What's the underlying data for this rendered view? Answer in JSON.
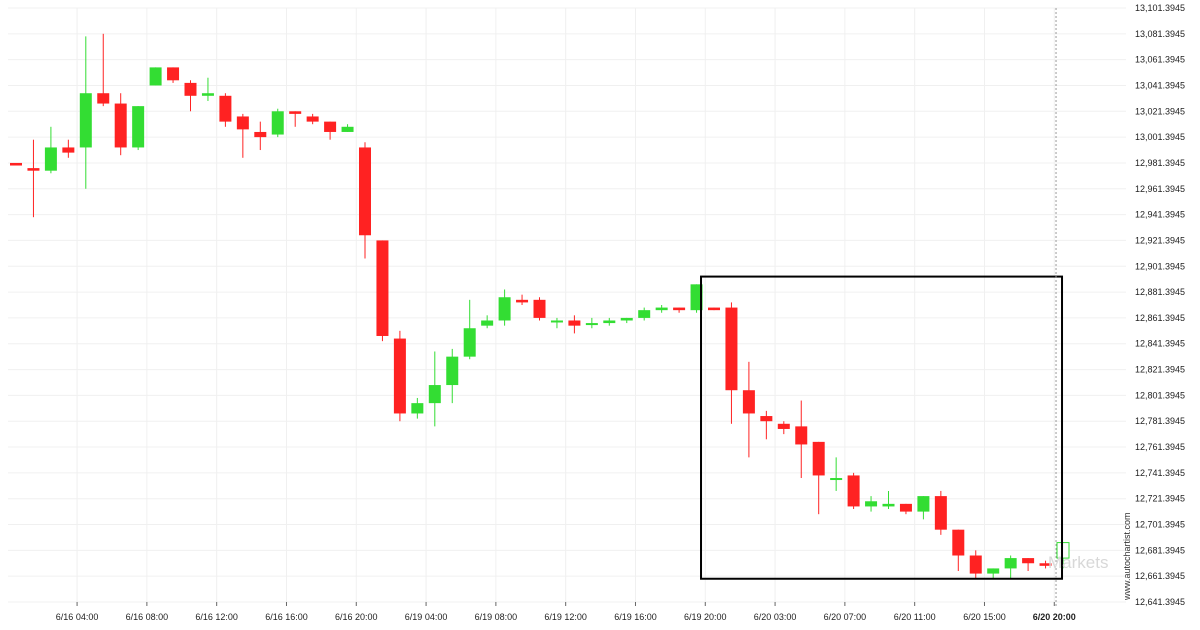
{
  "chart_data": {
    "type": "candlestick",
    "y_axis": {
      "ticks": [
        "13,101.3945",
        "13,081.3945",
        "13,061.3945",
        "13,041.3945",
        "13,021.3945",
        "13,001.3945",
        "12,981.3945",
        "12,961.3945",
        "12,941.3945",
        "12,921.3945",
        "12,901.3945",
        "12,881.3945",
        "12,861.3945",
        "12,841.3945",
        "12,821.3945",
        "12,801.3945",
        "12,781.3945",
        "12,761.3945",
        "12,741.3945",
        "12,721.3945",
        "12,701.3945",
        "12,681.3945",
        "12,661.3945",
        "12,641.3945"
      ],
      "range": [
        12641.3945,
        13101.3945
      ]
    },
    "x_axis": {
      "labels": [
        {
          "text": "6/16 04:00",
          "index": 3.5
        },
        {
          "text": "6/16 08:00",
          "index": 7.5
        },
        {
          "text": "6/16 12:00",
          "index": 11.5
        },
        {
          "text": "6/16 16:00",
          "index": 15.5
        },
        {
          "text": "6/16 20:00",
          "index": 19.5
        },
        {
          "text": "6/19 04:00",
          "index": 23.5
        },
        {
          "text": "6/19 08:00",
          "index": 27.5
        },
        {
          "text": "6/19 12:00",
          "index": 31.5
        },
        {
          "text": "6/19 16:00",
          "index": 35.5
        },
        {
          "text": "6/19 20:00",
          "index": 39.5
        },
        {
          "text": "6/20 03:00",
          "index": 43.5
        },
        {
          "text": "6/20 07:00",
          "index": 47.5
        },
        {
          "text": "6/20 11:00",
          "index": 51.5
        },
        {
          "text": "6/20 15:00",
          "index": 55.5
        },
        {
          "text": "6/20 20:00",
          "index": 59.5,
          "bold": true
        }
      ]
    },
    "candles": [
      {
        "o": 12981.4,
        "h": 12981.4,
        "l": 12979.4,
        "c": 12979.4
      },
      {
        "o": 12977.4,
        "h": 12999.4,
        "l": 12939.4,
        "c": 12975.4
      },
      {
        "o": 12975.4,
        "h": 13009.4,
        "l": 12973.4,
        "c": 12993.4
      },
      {
        "o": 12993.4,
        "h": 12999.4,
        "l": 12985.4,
        "c": 12989.4
      },
      {
        "o": 12993.4,
        "h": 13079.4,
        "l": 12961.4,
        "c": 13035.4
      },
      {
        "o": 13035.4,
        "h": 13081.4,
        "l": 13025.4,
        "c": 13027.4
      },
      {
        "o": 13027.4,
        "h": 13035.4,
        "l": 12987.4,
        "c": 12993.4
      },
      {
        "o": 12993.4,
        "h": 13025.4,
        "l": 12991.4,
        "c": 13025.4
      },
      {
        "o": 13041.4,
        "h": 13055.4,
        "l": 13041.4,
        "c": 13055.4
      },
      {
        "o": 13055.4,
        "h": 13055.4,
        "l": 13043.4,
        "c": 13045.4
      },
      {
        "o": 13043.4,
        "h": 13045.4,
        "l": 13021.4,
        "c": 13033.4
      },
      {
        "o": 13033.4,
        "h": 13047.4,
        "l": 13029.4,
        "c": 13035.4
      },
      {
        "o": 13033.4,
        "h": 13035.4,
        "l": 13009.4,
        "c": 13013.4
      },
      {
        "o": 13017.4,
        "h": 13019.4,
        "l": 12985.4,
        "c": 13007.4
      },
      {
        "o": 13005.4,
        "h": 13013.4,
        "l": 12991.4,
        "c": 13001.4
      },
      {
        "o": 13003.4,
        "h": 13023.4,
        "l": 13001.4,
        "c": 13021.4
      },
      {
        "o": 13021.4,
        "h": 13021.4,
        "l": 13009.4,
        "c": 13019.4
      },
      {
        "o": 13017.4,
        "h": 13019.4,
        "l": 13011.4,
        "c": 13013.4
      },
      {
        "o": 13013.4,
        "h": 13013.4,
        "l": 12999.4,
        "c": 13005.4
      },
      {
        "o": 13005.4,
        "h": 13011.4,
        "l": 13005.4,
        "c": 13009.4
      },
      {
        "o": 12993.4,
        "h": 12997.4,
        "l": 12907.4,
        "c": 12925.4
      },
      {
        "o": 12921.4,
        "h": 12921.4,
        "l": 12843.4,
        "c": 12847.4
      },
      {
        "o": 12845.4,
        "h": 12851.4,
        "l": 12781.4,
        "c": 12787.4
      },
      {
        "o": 12787.4,
        "h": 12799.4,
        "l": 12783.4,
        "c": 12795.4
      },
      {
        "o": 12795.4,
        "h": 12835.4,
        "l": 12777.4,
        "c": 12809.4
      },
      {
        "o": 12809.4,
        "h": 12837.4,
        "l": 12795.4,
        "c": 12831.4
      },
      {
        "o": 12831.4,
        "h": 12875.4,
        "l": 12829.4,
        "c": 12853.4
      },
      {
        "o": 12855.4,
        "h": 12863.4,
        "l": 12853.4,
        "c": 12859.4
      },
      {
        "o": 12859.4,
        "h": 12883.4,
        "l": 12855.4,
        "c": 12877.4
      },
      {
        "o": 12875.4,
        "h": 12879.4,
        "l": 12871.4,
        "c": 12873.4
      },
      {
        "o": 12875.4,
        "h": 12877.4,
        "l": 12859.4,
        "c": 12861.4
      },
      {
        "o": 12859.4,
        "h": 12861.4,
        "l": 12853.4,
        "c": 12859.4
      },
      {
        "o": 12859.4,
        "h": 12863.4,
        "l": 12849.4,
        "c": 12855.4
      },
      {
        "o": 12857.4,
        "h": 12861.4,
        "l": 12853.4,
        "c": 12857.4
      },
      {
        "o": 12857.4,
        "h": 12861.4,
        "l": 12855.4,
        "c": 12859.4
      },
      {
        "o": 12859.4,
        "h": 12861.4,
        "l": 12857.4,
        "c": 12861.4
      },
      {
        "o": 12861.4,
        "h": 12869.4,
        "l": 12859.4,
        "c": 12867.4
      },
      {
        "o": 12867.4,
        "h": 12871.4,
        "l": 12865.4,
        "c": 12869.4
      },
      {
        "o": 12869.4,
        "h": 12869.4,
        "l": 12865.4,
        "c": 12867.4
      },
      {
        "o": 12867.4,
        "h": 12887.4,
        "l": 12865.4,
        "c": 12887.4
      },
      {
        "o": 12869.4,
        "h": 12869.4,
        "l": 12867.4,
        "c": 12867.4
      },
      {
        "o": 12869.4,
        "h": 12873.4,
        "l": 12779.4,
        "c": 12805.4
      },
      {
        "o": 12805.4,
        "h": 12827.4,
        "l": 12753.4,
        "c": 12787.4
      },
      {
        "o": 12785.4,
        "h": 12789.4,
        "l": 12767.4,
        "c": 12781.4
      },
      {
        "o": 12779.4,
        "h": 12781.4,
        "l": 12771.4,
        "c": 12775.4
      },
      {
        "o": 12777.4,
        "h": 12797.4,
        "l": 12737.4,
        "c": 12763.4
      },
      {
        "o": 12765.4,
        "h": 12765.4,
        "l": 12709.4,
        "c": 12739.4
      },
      {
        "o": 12737.4,
        "h": 12753.4,
        "l": 12727.4,
        "c": 12737.4
      },
      {
        "o": 12739.4,
        "h": 12741.4,
        "l": 12713.4,
        "c": 12715.4
      },
      {
        "o": 12715.4,
        "h": 12723.4,
        "l": 12711.4,
        "c": 12719.4
      },
      {
        "o": 12715.4,
        "h": 12727.4,
        "l": 12713.4,
        "c": 12717.4
      },
      {
        "o": 12717.4,
        "h": 12717.4,
        "l": 12709.4,
        "c": 12711.4
      },
      {
        "o": 12711.4,
        "h": 12723.4,
        "l": 12705.4,
        "c": 12723.4
      },
      {
        "o": 12723.4,
        "h": 12727.4,
        "l": 12693.4,
        "c": 12697.4
      },
      {
        "o": 12697.4,
        "h": 12697.4,
        "l": 12665.4,
        "c": 12677.4
      },
      {
        "o": 12677.4,
        "h": 12681.4,
        "l": 12659.4,
        "c": 12663.4
      },
      {
        "o": 12663.4,
        "h": 12667.4,
        "l": 12659.4,
        "c": 12667.4
      },
      {
        "o": 12667.4,
        "h": 12677.4,
        "l": 12659.4,
        "c": 12675.4
      },
      {
        "o": 12675.4,
        "h": 12675.4,
        "l": 12665.4,
        "c": 12671.4
      },
      {
        "o": 12671.4,
        "h": 12673.4,
        "l": 12667.4,
        "c": 12669.4
      },
      {
        "o": 12675.4,
        "h": 12687.4,
        "l": 12667.4,
        "c": 12687.4,
        "hollow": true
      }
    ],
    "highlight_box": {
      "index_start": 39.6,
      "index_end": 59.6,
      "price_high": 12893.4,
      "price_low": 12659.4
    },
    "cursor_index": 59.6,
    "grid": true,
    "colors": {
      "up": "#33dd33",
      "down": "#ff2222",
      "box": "#000000",
      "grid": "#f0f0f0"
    }
  },
  "watermark": {
    "side_text": "www.autochartist.com",
    "logo_text": "Markets"
  }
}
